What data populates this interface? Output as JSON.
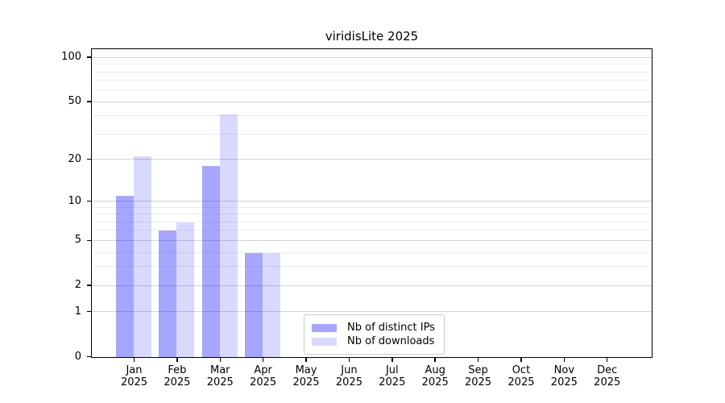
{
  "chart_data": {
    "type": "bar",
    "title": "viridisLite 2025",
    "categories": [
      "Jan 2025",
      "Feb 2025",
      "Mar 2025",
      "Apr 2025",
      "May 2025",
      "Jun 2025",
      "Jul 2025",
      "Aug 2025",
      "Sep 2025",
      "Oct 2025",
      "Nov 2025",
      "Dec 2025"
    ],
    "series": [
      {
        "name": "Nb of distinct IPs",
        "color": "rgba(0,0,255,0.35)",
        "values": [
          11,
          6,
          18,
          4,
          null,
          null,
          null,
          null,
          null,
          null,
          null,
          null
        ]
      },
      {
        "name": "Nb of downloads",
        "color": "rgba(0,0,255,0.15)",
        "values": [
          21,
          7,
          41,
          4,
          null,
          null,
          null,
          null,
          null,
          null,
          null,
          null
        ]
      }
    ],
    "yscale": "log1p",
    "yticks": [
      0,
      1,
      2,
      5,
      10,
      20,
      50,
      100
    ],
    "yticks_minor": [
      3,
      4,
      6,
      7,
      8,
      9,
      30,
      40,
      60,
      70,
      80,
      90
    ],
    "ylim": [
      0,
      113
    ],
    "xlabel": "",
    "ylabel": "",
    "grid": true,
    "legend_position": "inside lower center"
  },
  "colors": {
    "major_grid": "#d4d4d4",
    "minor_grid": "#ededed",
    "axis": "#000000",
    "background": "#ffffff",
    "legend_border": "#cccccc"
  }
}
